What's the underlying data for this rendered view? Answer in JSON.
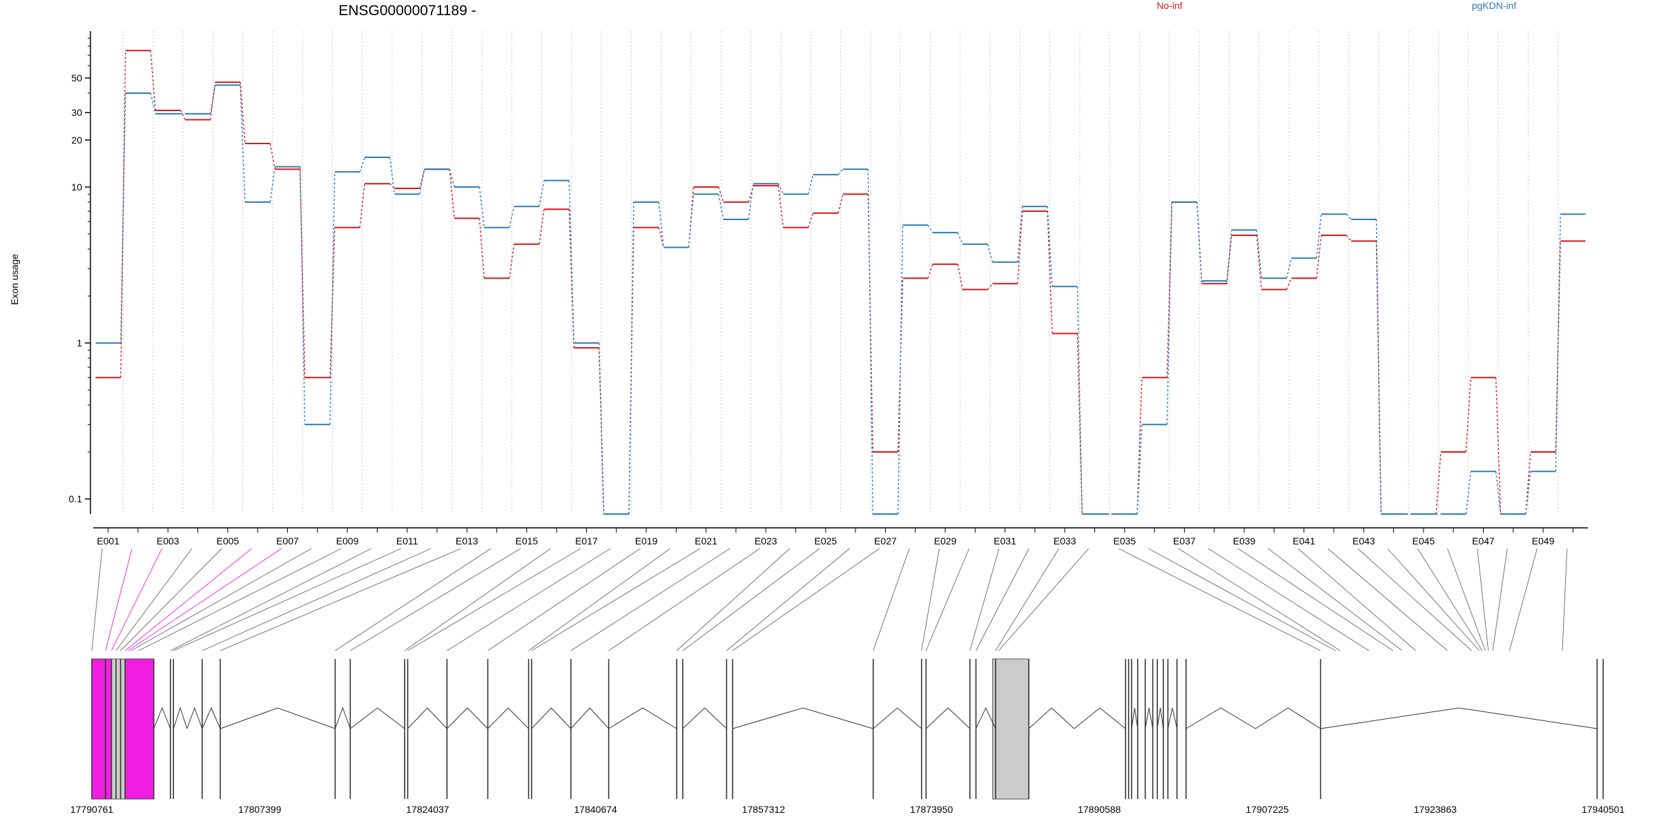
{
  "chart_data": {
    "type": "line",
    "title": "ENSG00000071189 -",
    "ylabel": "Exon usage",
    "yscale": "log",
    "ylim": [
      0.08,
      100
    ],
    "yticks": [
      0.1,
      1,
      10,
      20,
      30,
      50
    ],
    "ytick_labels": [
      "0.1",
      "1",
      "10",
      "20",
      "30",
      "50"
    ],
    "legend_position": "top",
    "exons": [
      "E001",
      "E002",
      "E003",
      "E004",
      "E005",
      "E006",
      "E007",
      "E008",
      "E009",
      "E010",
      "E011",
      "E012",
      "E013",
      "E014",
      "E015",
      "E016",
      "E017",
      "E018",
      "E019",
      "E020",
      "E021",
      "E022",
      "E023",
      "E024",
      "E025",
      "E026",
      "E027",
      "E028",
      "E029",
      "E030",
      "E031",
      "E032",
      "E033",
      "E034",
      "E035",
      "E036",
      "E037",
      "E038",
      "E039",
      "E040",
      "E041",
      "E042",
      "E043",
      "E044",
      "E045",
      "E046",
      "E047",
      "E048",
      "E049",
      "E050"
    ],
    "exon_tick_labels": [
      "E001",
      "E003",
      "E005",
      "E007",
      "E009",
      "E011",
      "E013",
      "E015",
      "E017",
      "E019",
      "E021",
      "E023",
      "E025",
      "E027",
      "E029",
      "E031",
      "E033",
      "E035",
      "E037",
      "E039",
      "E041",
      "E043",
      "E045",
      "E047",
      "E049"
    ],
    "series": [
      {
        "name": "No-inf",
        "color": "#d7191c",
        "values": [
          0.6,
          75,
          31,
          27,
          47,
          19,
          13,
          0.6,
          5.5,
          10.5,
          9.8,
          13,
          6.3,
          2.6,
          4.3,
          7.2,
          0.93,
          0.08,
          5.5,
          4.1,
          10,
          8,
          10.2,
          5.5,
          6.8,
          9,
          0.2,
          2.6,
          3.2,
          2.2,
          2.4,
          7,
          1.15,
          0.08,
          0.08,
          0.6,
          8,
          2.4,
          4.9,
          2.2,
          2.6,
          4.9,
          4.5,
          0.08,
          0.08,
          0.2,
          0.6,
          0.08,
          0.2,
          4.5
        ]
      },
      {
        "name": "pgKDN-inf",
        "color": "#2c7bb6",
        "values": [
          1,
          40,
          29.5,
          29.5,
          45,
          8,
          13.5,
          0.3,
          12.5,
          15.5,
          9,
          13,
          10,
          5.5,
          7.5,
          11,
          1,
          0.08,
          8,
          4.1,
          9,
          6.2,
          10.5,
          9,
          12,
          13,
          0.08,
          5.7,
          5.1,
          4.3,
          3.3,
          7.5,
          2.3,
          0.08,
          0.08,
          0.3,
          8,
          2.5,
          5.3,
          2.6,
          3.5,
          6.7,
          6.2,
          0.08,
          0.08,
          0.08,
          0.15,
          0.08,
          0.15,
          6.7
        ]
      }
    ],
    "gene_axis": {
      "start": 17790761,
      "end": 17940501,
      "tick_labels": [
        "17790761",
        "17807399",
        "17824037",
        "17840674",
        "17857312",
        "17873950",
        "17890588",
        "17907225",
        "17923863",
        "17940501"
      ]
    }
  },
  "colors": {
    "highlight_exon": "#f01ee0",
    "intron_block": "#cccccc",
    "grid": "#c8c8d8"
  }
}
